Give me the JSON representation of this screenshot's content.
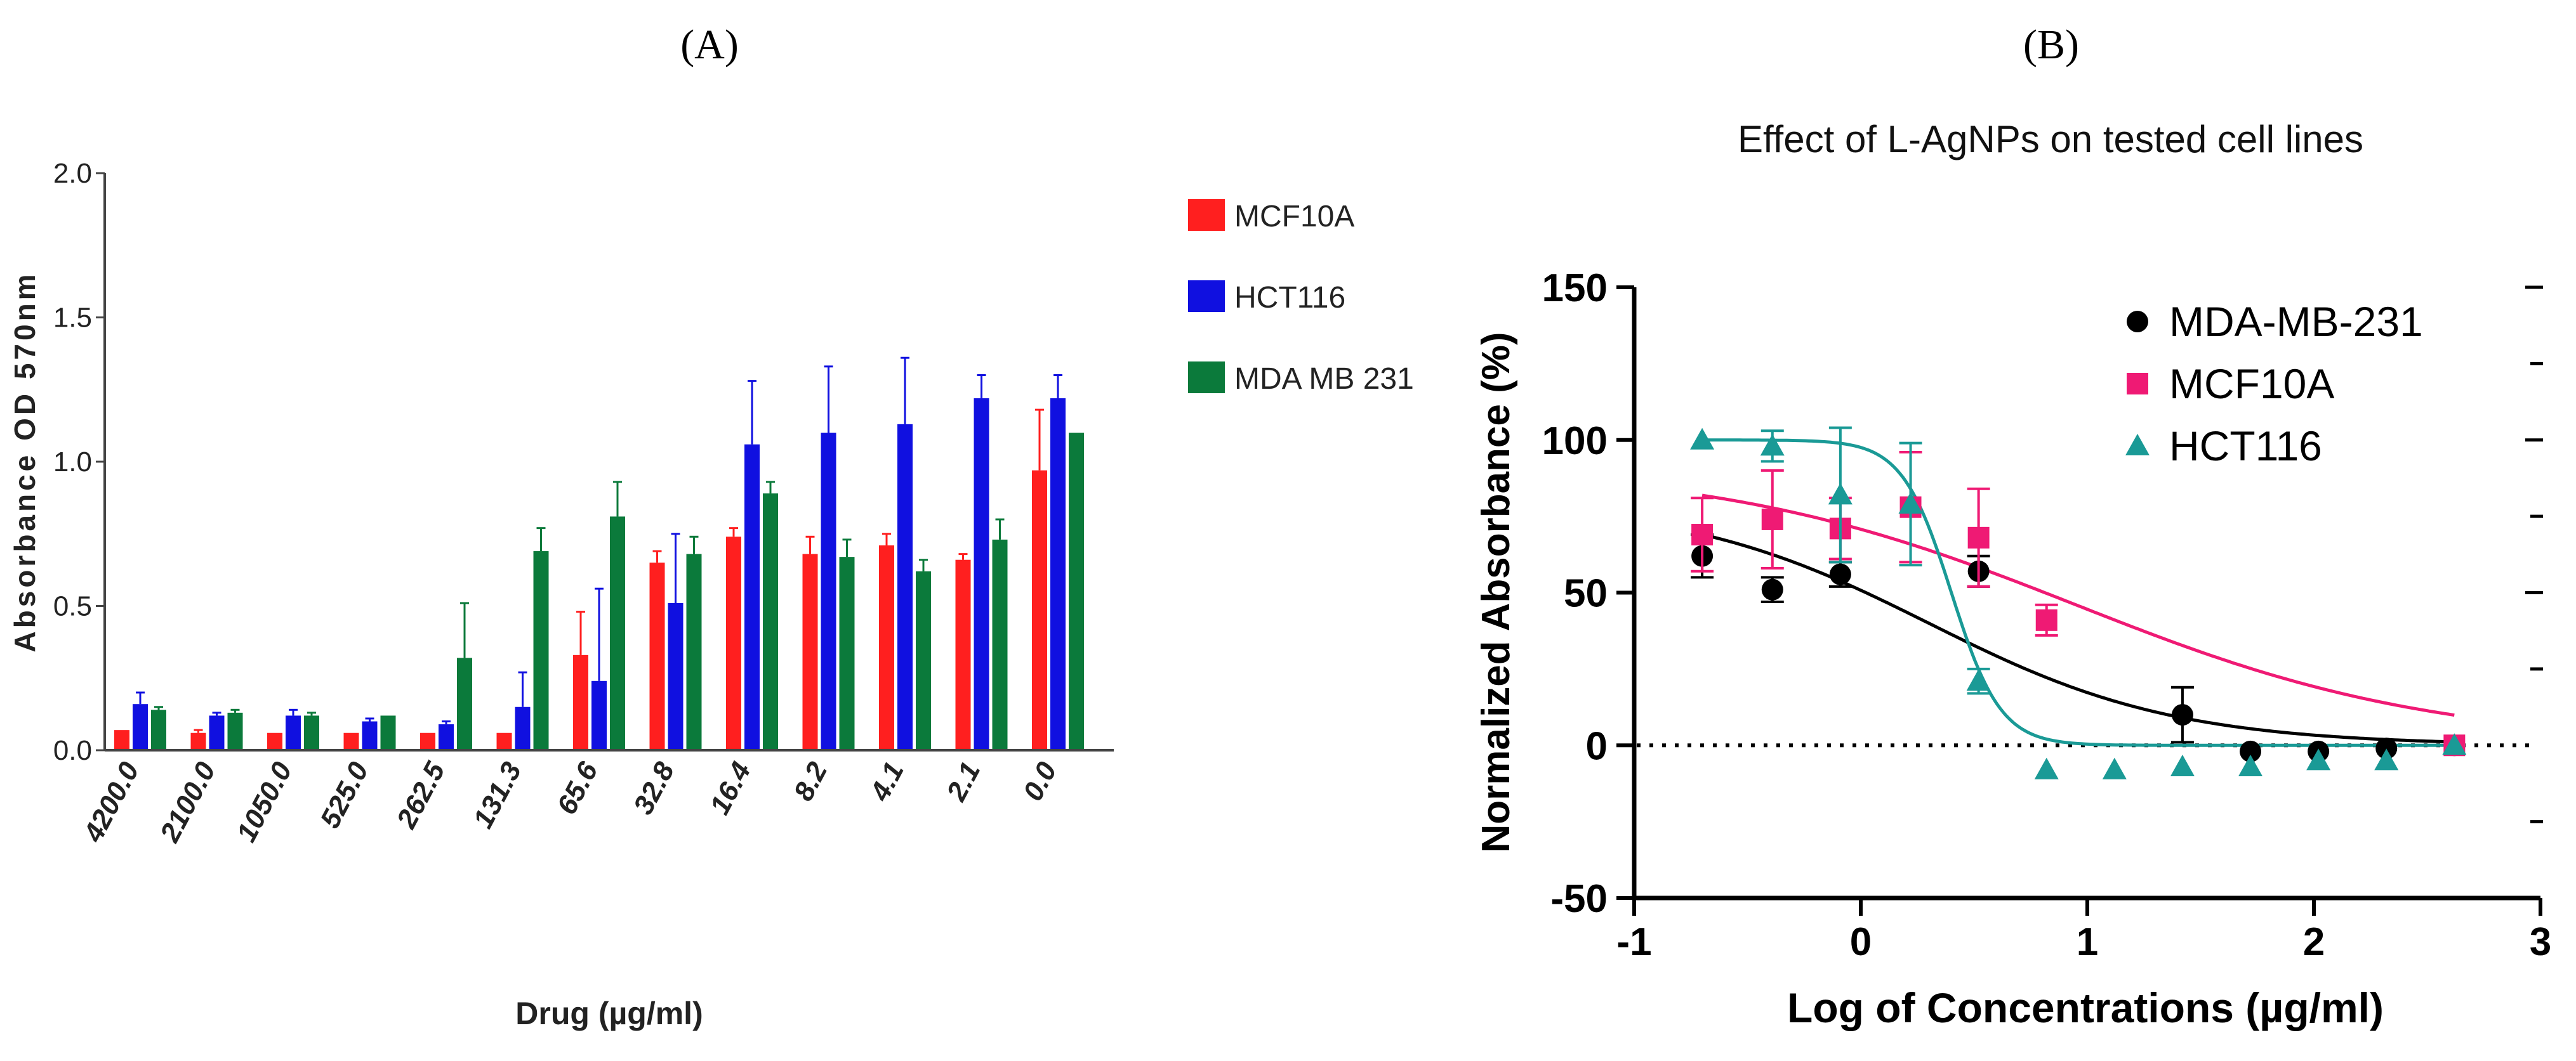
{
  "panels": {
    "a": {
      "label": "(A)"
    },
    "b": {
      "label": "(B)"
    }
  },
  "chart_data": [
    {
      "type": "bar",
      "title": "",
      "xlabel": "Drug (µg/ml)",
      "ylabel": "Absorbance OD 570nm",
      "ylim": [
        0,
        2.0
      ],
      "yticks": [
        0.0,
        0.5,
        1.0,
        1.5,
        2.0
      ],
      "ytick_labels": [
        "0.0",
        "0.5",
        "1.0",
        "1.5",
        "2.0"
      ],
      "legend_position": "right",
      "categories": [
        "4200.0",
        "2100.0",
        "1050.0",
        "525.0",
        "262.5",
        "131.3",
        "65.6",
        "32.8",
        "16.4",
        "8.2",
        "4.1",
        "2.1",
        "0.0"
      ],
      "series": [
        {
          "name": "MCF10A",
          "color": "#ff1f1f",
          "values": [
            0.07,
            0.06,
            0.06,
            0.06,
            0.06,
            0.06,
            0.33,
            0.65,
            0.74,
            0.68,
            0.71,
            0.66,
            0.97
          ],
          "errors": [
            0.0,
            0.01,
            0.0,
            0.0,
            0.0,
            0.0,
            0.15,
            0.04,
            0.03,
            0.06,
            0.04,
            0.02,
            0.21
          ]
        },
        {
          "name": "HCT116",
          "color": "#1010e0",
          "values": [
            0.16,
            0.12,
            0.12,
            0.1,
            0.09,
            0.15,
            0.24,
            0.51,
            1.06,
            1.1,
            1.13,
            1.22,
            1.22
          ],
          "errors": [
            0.04,
            0.01,
            0.02,
            0.01,
            0.01,
            0.12,
            0.32,
            0.24,
            0.22,
            0.23,
            0.23,
            0.08,
            0.08
          ]
        },
        {
          "name": "MDA MB 231",
          "color": "#0b7a3b",
          "values": [
            0.14,
            0.13,
            0.12,
            0.12,
            0.32,
            0.69,
            0.81,
            0.68,
            0.89,
            0.67,
            0.62,
            0.73,
            1.1
          ],
          "errors": [
            0.01,
            0.01,
            0.01,
            0.0,
            0.19,
            0.08,
            0.12,
            0.06,
            0.04,
            0.06,
            0.04,
            0.07,
            0.0
          ]
        }
      ]
    },
    {
      "type": "scatter",
      "title": "Effect of L-AgNPs on tested cell lines",
      "xlabel": "Log of Concentrations (µg/ml)",
      "ylabel": "Normalized Absorbance (%)",
      "xlim": [
        -1,
        3
      ],
      "ylim": [
        -50,
        150
      ],
      "xticks": [
        -1,
        0,
        1,
        2,
        3
      ],
      "xtick_labels": [
        "-1",
        "0",
        "1",
        "2",
        "3"
      ],
      "yticks": [
        -50,
        0,
        50,
        100,
        150
      ],
      "ytick_labels": [
        "-50",
        "0",
        "50",
        "100",
        "150"
      ],
      "reference_line_y": 0,
      "legend_position": "top-right",
      "series": [
        {
          "name": "MDA-MB-231",
          "color": "#000000",
          "marker": "circle",
          "x": [
            -0.7,
            -0.39,
            -0.09,
            0.52,
            1.42,
            1.72,
            2.02,
            2.32,
            2.62
          ],
          "y": [
            62,
            51,
            56,
            57,
            10,
            -2,
            -2,
            -1,
            0
          ],
          "errors": [
            7,
            4,
            4,
            5,
            9,
            0,
            0,
            0,
            0
          ],
          "fit": {
            "top": 80,
            "bottom": 0,
            "logIC50": 0.3,
            "hill": -0.8
          }
        },
        {
          "name": "MCF10A",
          "color": "#ef1a74",
          "marker": "square",
          "x": [
            -0.7,
            -0.39,
            -0.09,
            0.22,
            0.52,
            0.82,
            2.62
          ],
          "y": [
            69,
            74,
            71,
            78,
            68,
            41,
            0
          ],
          "errors": [
            12,
            16,
            10,
            18,
            16,
            5,
            0
          ],
          "fit": {
            "top": 92,
            "bottom": 0,
            "logIC50": 0.95,
            "hill": -0.55
          }
        },
        {
          "name": "HCT116",
          "color": "#1a9a96",
          "marker": "triangle",
          "x": [
            -0.7,
            -0.39,
            -0.09,
            0.22,
            0.52,
            0.82,
            1.12,
            1.42,
            1.72,
            2.02,
            2.32,
            2.62
          ],
          "y": [
            100,
            98,
            82,
            79,
            21,
            -8,
            -8,
            -7,
            -7,
            -5,
            -5,
            0
          ],
          "errors": [
            0,
            5,
            22,
            20,
            4,
            0,
            0,
            0,
            0,
            0,
            0,
            0
          ],
          "fit": {
            "top": 100,
            "bottom": 0,
            "logIC50": 0.4,
            "hill": -4.0
          }
        }
      ]
    }
  ]
}
